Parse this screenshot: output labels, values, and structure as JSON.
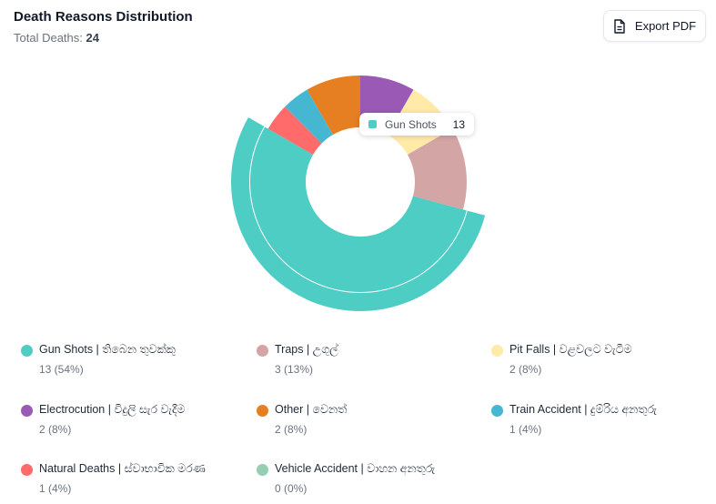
{
  "header": {
    "title": "Death Reasons Distribution",
    "total_label": "Total Deaths:",
    "total_value": "24",
    "export_label": "Export PDF"
  },
  "tooltip": {
    "label": "Gun Shots",
    "value": "13",
    "color": "#4ecdc4"
  },
  "chart_data": {
    "type": "pie",
    "variant": "donut",
    "title": "Death Reasons Distribution",
    "total": 24,
    "active_slice": "Gun Shots",
    "series": [
      {
        "name": "Gun Shots | තිබෙන තුවක්කු",
        "value": 13,
        "color": "#4ecdc4"
      },
      {
        "name": "Natural Deaths | ස්වාභාවික මරණ",
        "value": 1,
        "color": "#ff6b6b"
      },
      {
        "name": "Train Accident | දුම්රිය අනතුරු",
        "value": 1,
        "color": "#45b7d1"
      },
      {
        "name": "Other | වෙනත්",
        "value": 2,
        "color": "#e67e22"
      },
      {
        "name": "Electrocution | විදුලි සැර වැදීම",
        "value": 2,
        "color": "#9b59b6"
      },
      {
        "name": "Pit Falls | වළවලට වැටීම",
        "value": 2,
        "color": "#ffeaa7"
      },
      {
        "name": "Traps | උගුල්",
        "value": 3,
        "color": "#d4a5a5"
      },
      {
        "name": "Vehicle Accident | වාහන අනතුරු",
        "value": 0,
        "color": "#96ceb4"
      }
    ]
  },
  "legend": [
    {
      "name": "Gun Shots | තිබෙන තුවක්කු",
      "stat": "13 (54%)",
      "color": "#4ecdc4"
    },
    {
      "name": "Traps | උගුල්",
      "stat": "3 (13%)",
      "color": "#d4a5a5"
    },
    {
      "name": "Pit Falls | වළවලට වැටීම",
      "stat": "2 (8%)",
      "color": "#ffeaa7"
    },
    {
      "name": "Electrocution | විදුලි සැර වැදීම",
      "stat": "2 (8%)",
      "color": "#9b59b6"
    },
    {
      "name": "Other | වෙනත්",
      "stat": "2 (8%)",
      "color": "#e67e22"
    },
    {
      "name": "Train Accident | දුම්රිය අනතුරු",
      "stat": "1 (4%)",
      "color": "#45b7d1"
    },
    {
      "name": "Natural Deaths | ස්වාභාවික මරණ",
      "stat": "1 (4%)",
      "color": "#ff6b6b"
    },
    {
      "name": "Vehicle Accident | වාහන අනතුරු",
      "stat": "0 (0%)",
      "color": "#96ceb4"
    }
  ]
}
